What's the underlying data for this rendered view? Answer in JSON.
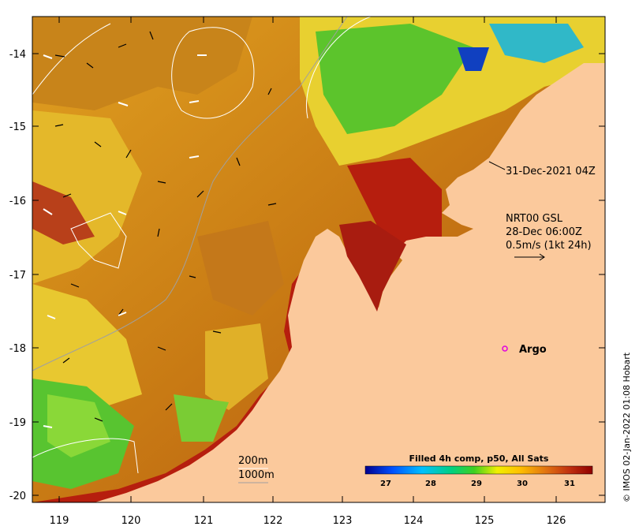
{
  "map": {
    "lon_ticks": [
      "119",
      "120",
      "121",
      "122",
      "123",
      "124",
      "125",
      "126"
    ],
    "lat_ticks": [
      "-14",
      "-15",
      "-16",
      "-17",
      "-18",
      "-19",
      "-20"
    ]
  },
  "annotations": {
    "timestamp": "31-Dec-2021 04Z",
    "current_source": "NRT00 GSL",
    "current_time": "28-Dec 06:00Z",
    "current_scale": "0.5m/s (1kt 24h)",
    "argo_label": "Argo",
    "contour_200": "200m",
    "contour_1000": "1000m"
  },
  "colorbar": {
    "title": "Filled 4h comp, p50, All Sats",
    "ticks": [
      "27",
      "28",
      "29",
      "30",
      "31"
    ]
  },
  "credit": "© IMOS 02-Jan-2022 01:08 Hobart",
  "colors": {
    "land": "#fbc99c",
    "sst_warm": "#b61e0e",
    "sst_mid": "#d68b14",
    "sst_cool": "#52c22c"
  }
}
